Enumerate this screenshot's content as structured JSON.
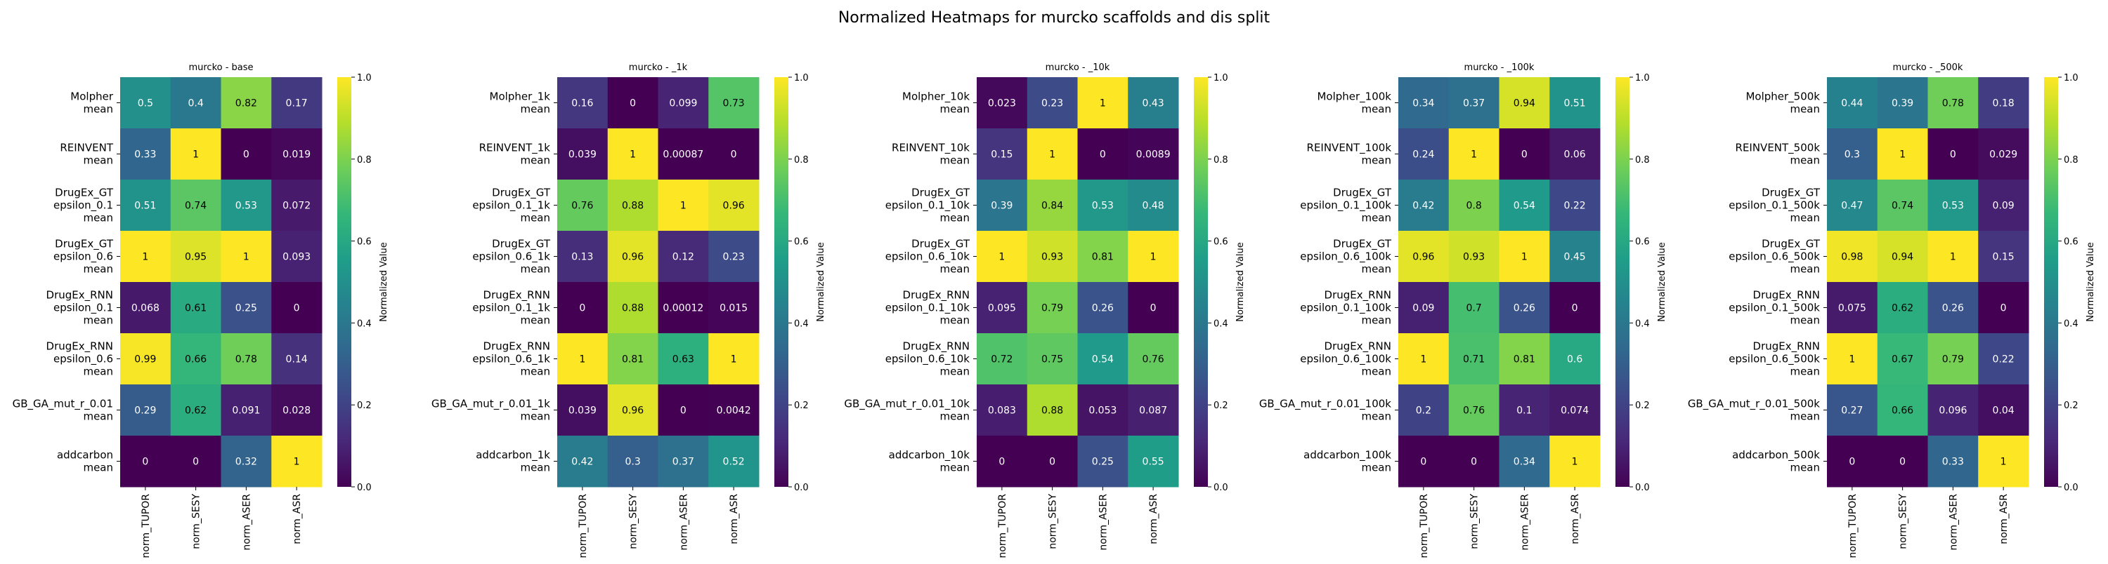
{
  "figure_title": "Normalized Heatmaps for murcko scaffolds and dis split",
  "colors": {
    "colormap": "viridis",
    "viridis_stops": [
      "#440154",
      "#482878",
      "#3e4989",
      "#31688e",
      "#26828e",
      "#1f9e89",
      "#35b779",
      "#6ece58",
      "#b5de2b",
      "#fde725"
    ]
  },
  "chart_data": [
    {
      "type": "heatmap",
      "title": "murcko - base",
      "rows": [
        "Molpher\nmean",
        "REINVENT\nmean",
        "DrugEx_GT\nepsilon_0.1\nmean",
        "DrugEx_GT\nepsilon_0.6\nmean",
        "DrugEx_RNN\nepsilon_0.1\nmean",
        "DrugEx_RNN\nepsilon_0.6\nmean",
        "GB_GA_mut_r_0.01\nmean",
        "addcarbon\nmean"
      ],
      "columns": [
        "norm_TUPOR",
        "norm_SESY",
        "norm_ASER",
        "norm_ASR"
      ],
      "values": [
        [
          0.5,
          0.4,
          0.82,
          0.17
        ],
        [
          0.33,
          1,
          0,
          0.019
        ],
        [
          0.51,
          0.74,
          0.53,
          0.072
        ],
        [
          1,
          0.95,
          1,
          0.093
        ],
        [
          0.068,
          0.61,
          0.25,
          0
        ],
        [
          0.99,
          0.66,
          0.78,
          0.14
        ],
        [
          0.29,
          0.62,
          0.091,
          0.028
        ],
        [
          0,
          0,
          0.32,
          1
        ]
      ],
      "colorbar_label": "Normalized Value",
      "colorbar_ticks": [
        "0.0",
        "0.2",
        "0.4",
        "0.6",
        "0.8",
        "1.0"
      ],
      "vmin": 0,
      "vmax": 1
    },
    {
      "type": "heatmap",
      "title": "murcko - _1k",
      "rows": [
        "Molpher_1k\nmean",
        "REINVENT_1k\nmean",
        "DrugEx_GT\nepsilon_0.1_1k\nmean",
        "DrugEx_GT\nepsilon_0.6_1k\nmean",
        "DrugEx_RNN\nepsilon_0.1_1k\nmean",
        "DrugEx_RNN\nepsilon_0.6_1k\nmean",
        "GB_GA_mut_r_0.01_1k\nmean",
        "addcarbon_1k\nmean"
      ],
      "columns": [
        "norm_TUPOR",
        "norm_SESY",
        "norm_ASER",
        "norm_ASR"
      ],
      "values": [
        [
          0.16,
          0,
          0.099,
          0.73
        ],
        [
          0.039,
          1,
          0.00087,
          0
        ],
        [
          0.76,
          0.88,
          1,
          0.96
        ],
        [
          0.13,
          0.96,
          0.12,
          0.23
        ],
        [
          0,
          0.88,
          0.00012,
          0.015
        ],
        [
          1,
          0.81,
          0.63,
          1
        ],
        [
          0.039,
          0.96,
          0,
          0.0042
        ],
        [
          0.42,
          0.3,
          0.37,
          0.52
        ]
      ],
      "colorbar_label": "Normalized Value",
      "colorbar_ticks": [
        "0.0",
        "0.2",
        "0.4",
        "0.6",
        "0.8",
        "1.0"
      ],
      "vmin": 0,
      "vmax": 1
    },
    {
      "type": "heatmap",
      "title": "murcko - _10k",
      "rows": [
        "Molpher_10k\nmean",
        "REINVENT_10k\nmean",
        "DrugEx_GT\nepsilon_0.1_10k\nmean",
        "DrugEx_GT\nepsilon_0.6_10k\nmean",
        "DrugEx_RNN\nepsilon_0.1_10k\nmean",
        "DrugEx_RNN\nepsilon_0.6_10k\nmean",
        "GB_GA_mut_r_0.01_10k\nmean",
        "addcarbon_10k\nmean"
      ],
      "columns": [
        "norm_TUPOR",
        "norm_SESY",
        "norm_ASER",
        "norm_ASR"
      ],
      "values": [
        [
          0.023,
          0.23,
          1,
          0.43
        ],
        [
          0.15,
          1,
          0,
          0.0089
        ],
        [
          0.39,
          0.84,
          0.53,
          0.48
        ],
        [
          1,
          0.93,
          0.81,
          1
        ],
        [
          0.095,
          0.79,
          0.26,
          0
        ],
        [
          0.72,
          0.75,
          0.54,
          0.76
        ],
        [
          0.083,
          0.88,
          0.053,
          0.087
        ],
        [
          0,
          0,
          0.25,
          0.55
        ]
      ],
      "colorbar_label": "Normalized Value",
      "colorbar_ticks": [
        "0.0",
        "0.2",
        "0.4",
        "0.6",
        "0.8",
        "1.0"
      ],
      "vmin": 0,
      "vmax": 1
    },
    {
      "type": "heatmap",
      "title": "murcko - _100k",
      "rows": [
        "Molpher_100k\nmean",
        "REINVENT_100k\nmean",
        "DrugEx_GT\nepsilon_0.1_100k\nmean",
        "DrugEx_GT\nepsilon_0.6_100k\nmean",
        "DrugEx_RNN\nepsilon_0.1_100k\nmean",
        "DrugEx_RNN\nepsilon_0.6_100k\nmean",
        "GB_GA_mut_r_0.01_100k\nmean",
        "addcarbon_100k\nmean"
      ],
      "columns": [
        "norm_TUPOR",
        "norm_SESY",
        "norm_ASER",
        "norm_ASR"
      ],
      "values": [
        [
          0.34,
          0.37,
          0.94,
          0.51
        ],
        [
          0.24,
          1,
          0,
          0.06
        ],
        [
          0.42,
          0.8,
          0.54,
          0.22
        ],
        [
          0.96,
          0.93,
          1,
          0.45
        ],
        [
          0.09,
          0.7,
          0.26,
          0
        ],
        [
          1,
          0.71,
          0.81,
          0.6
        ],
        [
          0.2,
          0.76,
          0.1,
          0.074
        ],
        [
          0,
          0,
          0.34,
          1
        ]
      ],
      "colorbar_label": "Normalized Value",
      "colorbar_ticks": [
        "0.0",
        "0.2",
        "0.4",
        "0.6",
        "0.8",
        "1.0"
      ],
      "vmin": 0,
      "vmax": 1
    },
    {
      "type": "heatmap",
      "title": "murcko - _500k",
      "rows": [
        "Molpher_500k\nmean",
        "REINVENT_500k\nmean",
        "DrugEx_GT\nepsilon_0.1_500k\nmean",
        "DrugEx_GT\nepsilon_0.6_500k\nmean",
        "DrugEx_RNN\nepsilon_0.1_500k\nmean",
        "DrugEx_RNN\nepsilon_0.6_500k\nmean",
        "GB_GA_mut_r_0.01_500k\nmean",
        "addcarbon_500k\nmean"
      ],
      "columns": [
        "norm_TUPOR",
        "norm_SESY",
        "norm_ASER",
        "norm_ASR"
      ],
      "values": [
        [
          0.44,
          0.39,
          0.78,
          0.18
        ],
        [
          0.3,
          1,
          0,
          0.029
        ],
        [
          0.47,
          0.74,
          0.53,
          0.09
        ],
        [
          0.98,
          0.94,
          1,
          0.15
        ],
        [
          0.075,
          0.62,
          0.26,
          0
        ],
        [
          1,
          0.67,
          0.79,
          0.22
        ],
        [
          0.27,
          0.66,
          0.096,
          0.04
        ],
        [
          0,
          0,
          0.33,
          1
        ]
      ],
      "colorbar_label": "Normalized Value",
      "colorbar_ticks": [
        "0.0",
        "0.2",
        "0.4",
        "0.6",
        "0.8",
        "1.0"
      ],
      "vmin": 0,
      "vmax": 1
    }
  ]
}
